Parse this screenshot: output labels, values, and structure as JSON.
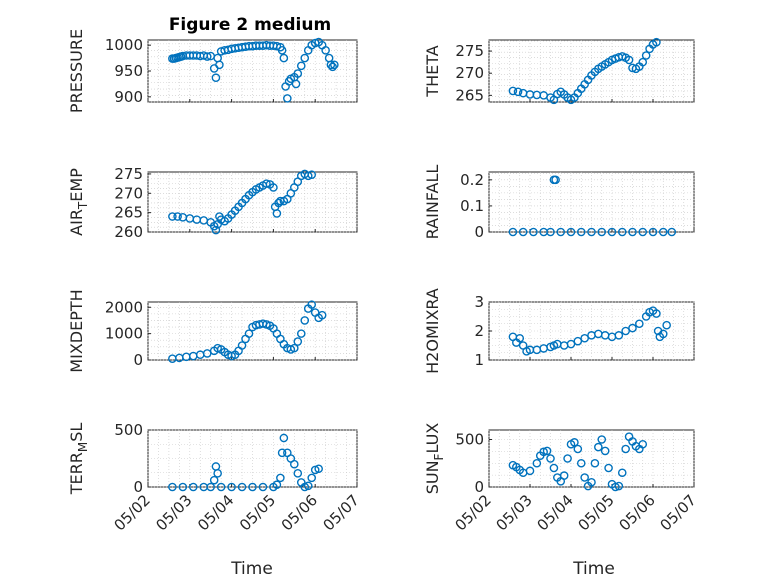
{
  "figure": {
    "title": "Figure 2 medium",
    "marker_color": "#0072BD",
    "xlabel": "Time"
  },
  "chart_data": [
    {
      "type": "scatter",
      "ylabel": "PRESSURE",
      "x_domain": [
        "05/02",
        "05/07"
      ],
      "ylim": [
        890,
        1010
      ],
      "yticks": [
        900,
        950,
        1000
      ],
      "grid": true,
      "points": [
        [
          "05/02 14:00",
          974
        ],
        [
          "05/02 15:00",
          974
        ],
        [
          "05/02 16:00",
          975
        ],
        [
          "05/02 17:00",
          976
        ],
        [
          "05/02 18:00",
          977
        ],
        [
          "05/02 19:00",
          978
        ],
        [
          "05/02 20:00",
          979
        ],
        [
          "05/02 22:00",
          980
        ],
        [
          "05/03 00:00",
          980
        ],
        [
          "05/03 02:00",
          980
        ],
        [
          "05/03 04:00",
          980
        ],
        [
          "05/03 06:00",
          979
        ],
        [
          "05/03 08:00",
          980
        ],
        [
          "05/03 10:00",
          978
        ],
        [
          "05/03 12:00",
          979
        ],
        [
          "05/03 14:00",
          955
        ],
        [
          "05/03 15:00",
          937
        ],
        [
          "05/03 16:00",
          975
        ],
        [
          "05/03 17:00",
          962
        ],
        [
          "05/03 18:00",
          988
        ],
        [
          "05/03 20:00",
          990
        ],
        [
          "05/03 22:00",
          991
        ],
        [
          "05/04 00:00",
          993
        ],
        [
          "05/04 02:00",
          994
        ],
        [
          "05/04 04:00",
          995
        ],
        [
          "05/04 06:00",
          996
        ],
        [
          "05/04 08:00",
          997
        ],
        [
          "05/04 10:00",
          998
        ],
        [
          "05/04 12:00",
          998
        ],
        [
          "05/04 14:00",
          999
        ],
        [
          "05/04 16:00",
          999
        ],
        [
          "05/04 18:00",
          999
        ],
        [
          "05/04 20:00",
          1000
        ],
        [
          "05/04 22:00",
          999
        ],
        [
          "05/05 00:00",
          999
        ],
        [
          "05/05 02:00",
          998
        ],
        [
          "05/05 04:00",
          996
        ],
        [
          "05/05 05:00",
          990
        ],
        [
          "05/05 06:00",
          975
        ],
        [
          "05/05 07:00",
          920
        ],
        [
          "05/05 08:00",
          897
        ],
        [
          "05/05 09:00",
          930
        ],
        [
          "05/05 10:00",
          935
        ],
        [
          "05/05 12:00",
          938
        ],
        [
          "05/05 13:00",
          925
        ],
        [
          "05/05 14:00",
          945
        ],
        [
          "05/05 16:00",
          960
        ],
        [
          "05/05 18:00",
          975
        ],
        [
          "05/05 20:00",
          990
        ],
        [
          "05/05 22:00",
          1000
        ],
        [
          "05/06 00:00",
          1004
        ],
        [
          "05/06 02:00",
          1006
        ],
        [
          "05/06 04:00",
          1000
        ],
        [
          "05/06 06:00",
          990
        ],
        [
          "05/06 08:00",
          975
        ],
        [
          "05/06 09:00",
          962
        ],
        [
          "05/06 10:00",
          958
        ],
        [
          "05/06 11:00",
          962
        ]
      ]
    },
    {
      "type": "scatter",
      "ylabel": "THETA",
      "x_domain": [
        "05/02",
        "05/07"
      ],
      "ylim": [
        263.5,
        277.5
      ],
      "yticks": [
        265,
        270,
        275
      ],
      "grid": true,
      "points": [
        [
          "05/02 14:00",
          266
        ],
        [
          "05/02 17:00",
          265.8
        ],
        [
          "05/02 20:00",
          265.5
        ],
        [
          "05/03 00:00",
          265.2
        ],
        [
          "05/03 04:00",
          265.1
        ],
        [
          "05/03 08:00",
          265.0
        ],
        [
          "05/03 12:00",
          264.5
        ],
        [
          "05/03 14:00",
          264.0
        ],
        [
          "05/03 16:00",
          265.3
        ],
        [
          "05/03 18:00",
          265.8
        ],
        [
          "05/03 20:00",
          265.2
        ],
        [
          "05/03 22:00",
          264.5
        ],
        [
          "05/04 00:00",
          264.0
        ],
        [
          "05/04 02:00",
          264.5
        ],
        [
          "05/04 04:00",
          265.5
        ],
        [
          "05/04 06:00",
          266.5
        ],
        [
          "05/04 08:00",
          267.5
        ],
        [
          "05/04 10:00",
          268.5
        ],
        [
          "05/04 12:00",
          269.5
        ],
        [
          "05/04 14:00",
          270.3
        ],
        [
          "05/04 16:00",
          271.0
        ],
        [
          "05/04 18:00",
          271.5
        ],
        [
          "05/04 20:00",
          272.0
        ],
        [
          "05/04 22:00",
          272.5
        ],
        [
          "05/05 00:00",
          273.0
        ],
        [
          "05/05 02:00",
          273.3
        ],
        [
          "05/05 04:00",
          273.6
        ],
        [
          "05/05 06:00",
          273.8
        ],
        [
          "05/05 08:00",
          273.5
        ],
        [
          "05/05 10:00",
          273.0
        ],
        [
          "05/05 12:00",
          271.2
        ],
        [
          "05/05 14:00",
          271.0
        ],
        [
          "05/05 16:00",
          271.5
        ],
        [
          "05/05 18:00",
          272.5
        ],
        [
          "05/05 20:00",
          274.0
        ],
        [
          "05/05 22:00",
          275.5
        ],
        [
          "05/06 00:00",
          276.5
        ],
        [
          "05/06 02:00",
          277.0
        ]
      ]
    },
    {
      "type": "scatter",
      "ylabel": "AIR_TEMP",
      "x_domain": [
        "05/02",
        "05/07"
      ],
      "ylim": [
        260,
        275.5
      ],
      "yticks": [
        260,
        265,
        270,
        275
      ],
      "grid": true,
      "points": [
        [
          "05/02 14:00",
          264
        ],
        [
          "05/02 17:00",
          264
        ],
        [
          "05/02 20:00",
          263.8
        ],
        [
          "05/03 00:00",
          263.5
        ],
        [
          "05/03 04:00",
          263.2
        ],
        [
          "05/03 08:00",
          263.0
        ],
        [
          "05/03 12:00",
          262.5
        ],
        [
          "05/03 14:00",
          261.5
        ],
        [
          "05/03 15:00",
          260.5
        ],
        [
          "05/03 16:00",
          262.0
        ],
        [
          "05/03 17:00",
          264.0
        ],
        [
          "05/03 18:00",
          263.2
        ],
        [
          "05/03 20:00",
          262.8
        ],
        [
          "05/03 22:00",
          263.5
        ],
        [
          "05/04 00:00",
          264.5
        ],
        [
          "05/04 02:00",
          265.5
        ],
        [
          "05/04 04:00",
          266.5
        ],
        [
          "05/04 06:00",
          267.5
        ],
        [
          "05/04 08:00",
          268.5
        ],
        [
          "05/04 10:00",
          269.5
        ],
        [
          "05/04 12:00",
          270.3
        ],
        [
          "05/04 14:00",
          271.0
        ],
        [
          "05/04 16:00",
          271.5
        ],
        [
          "05/04 18:00",
          272.0
        ],
        [
          "05/04 20:00",
          272.5
        ],
        [
          "05/04 22:00",
          272.3
        ],
        [
          "05/05 00:00",
          271.5
        ],
        [
          "05/05 01:00",
          266.5
        ],
        [
          "05/05 02:00",
          264.8
        ],
        [
          "05/05 03:00",
          267.5
        ],
        [
          "05/05 04:00",
          268.0
        ],
        [
          "05/05 06:00",
          268.0
        ],
        [
          "05/05 08:00",
          268.5
        ],
        [
          "05/05 10:00",
          270.0
        ],
        [
          "05/05 12:00",
          271.5
        ],
        [
          "05/05 14:00",
          273.0
        ],
        [
          "05/05 16:00",
          274.5
        ],
        [
          "05/05 18:00",
          275.0
        ],
        [
          "05/05 20:00",
          274.5
        ],
        [
          "05/05 22:00",
          274.8
        ]
      ]
    },
    {
      "type": "scatter",
      "ylabel": "RAINFALL",
      "x_domain": [
        "05/02",
        "05/07"
      ],
      "ylim": [
        0,
        0.23
      ],
      "yticks": [
        0,
        0.1,
        0.2
      ],
      "grid": true,
      "points": [
        [
          "05/02 14:00",
          0
        ],
        [
          "05/02 20:00",
          0
        ],
        [
          "05/03 02:00",
          0
        ],
        [
          "05/03 08:00",
          0
        ],
        [
          "05/03 12:00",
          0
        ],
        [
          "05/03 14:00",
          0.2
        ],
        [
          "05/03 15:00",
          0.2
        ],
        [
          "05/03 18:00",
          0
        ],
        [
          "05/04 00:00",
          0
        ],
        [
          "05/04 06:00",
          0
        ],
        [
          "05/04 12:00",
          0
        ],
        [
          "05/04 18:00",
          0
        ],
        [
          "05/05 00:00",
          0
        ],
        [
          "05/05 06:00",
          0
        ],
        [
          "05/05 12:00",
          0
        ],
        [
          "05/05 18:00",
          0
        ],
        [
          "05/06 00:00",
          0
        ],
        [
          "05/06 06:00",
          0
        ],
        [
          "05/06 11:00",
          0
        ]
      ]
    },
    {
      "type": "scatter",
      "ylabel": "MIXDEPTH",
      "x_domain": [
        "05/02",
        "05/07"
      ],
      "ylim": [
        0,
        2200
      ],
      "yticks": [
        0,
        1000,
        2000
      ],
      "grid": true,
      "points": [
        [
          "05/02 14:00",
          50
        ],
        [
          "05/02 18:00",
          80
        ],
        [
          "05/02 22:00",
          120
        ],
        [
          "05/03 02:00",
          150
        ],
        [
          "05/03 06:00",
          200
        ],
        [
          "05/03 10:00",
          250
        ],
        [
          "05/03 14:00",
          350
        ],
        [
          "05/03 16:00",
          450
        ],
        [
          "05/03 18:00",
          400
        ],
        [
          "05/03 20:00",
          300
        ],
        [
          "05/03 22:00",
          200
        ],
        [
          "05/04 00:00",
          150
        ],
        [
          "05/04 02:00",
          200
        ],
        [
          "05/04 04:00",
          350
        ],
        [
          "05/04 06:00",
          550
        ],
        [
          "05/04 08:00",
          800
        ],
        [
          "05/04 10:00",
          1000
        ],
        [
          "05/04 12:00",
          1250
        ],
        [
          "05/04 14:00",
          1320
        ],
        [
          "05/04 16:00",
          1350
        ],
        [
          "05/04 18:00",
          1380
        ],
        [
          "05/04 20:00",
          1350
        ],
        [
          "05/04 22:00",
          1300
        ],
        [
          "05/05 00:00",
          1200
        ],
        [
          "05/05 02:00",
          1000
        ],
        [
          "05/05 04:00",
          800
        ],
        [
          "05/05 06:00",
          600
        ],
        [
          "05/05 08:00",
          450
        ],
        [
          "05/05 10:00",
          400
        ],
        [
          "05/05 12:00",
          450
        ],
        [
          "05/05 14:00",
          700
        ],
        [
          "05/05 16:00",
          1000
        ],
        [
          "05/05 18:00",
          1500
        ],
        [
          "05/05 20:00",
          1950
        ],
        [
          "05/05 22:00",
          2100
        ],
        [
          "05/06 00:00",
          1800
        ],
        [
          "05/06 02:00",
          1600
        ],
        [
          "05/06 04:00",
          1700
        ]
      ]
    },
    {
      "type": "scatter",
      "ylabel": "H2OMIXRA",
      "x_domain": [
        "05/02",
        "05/07"
      ],
      "ylim": [
        1,
        3
      ],
      "yticks": [
        1,
        2,
        3
      ],
      "grid": true,
      "points": [
        [
          "05/02 14:00",
          1.8
        ],
        [
          "05/02 16:00",
          1.6
        ],
        [
          "05/02 18:00",
          1.75
        ],
        [
          "05/02 20:00",
          1.5
        ],
        [
          "05/02 22:00",
          1.3
        ],
        [
          "05/03 00:00",
          1.35
        ],
        [
          "05/03 04:00",
          1.35
        ],
        [
          "05/03 08:00",
          1.4
        ],
        [
          "05/03 12:00",
          1.45
        ],
        [
          "05/03 14:00",
          1.5
        ],
        [
          "05/03 16:00",
          1.55
        ],
        [
          "05/03 20:00",
          1.5
        ],
        [
          "05/04 00:00",
          1.55
        ],
        [
          "05/04 04:00",
          1.65
        ],
        [
          "05/04 08:00",
          1.75
        ],
        [
          "05/04 12:00",
          1.85
        ],
        [
          "05/04 16:00",
          1.9
        ],
        [
          "05/04 20:00",
          1.85
        ],
        [
          "05/05 00:00",
          1.8
        ],
        [
          "05/05 04:00",
          1.85
        ],
        [
          "05/05 08:00",
          2.0
        ],
        [
          "05/05 12:00",
          2.1
        ],
        [
          "05/05 16:00",
          2.25
        ],
        [
          "05/05 20:00",
          2.5
        ],
        [
          "05/05 22:00",
          2.65
        ],
        [
          "05/06 00:00",
          2.7
        ],
        [
          "05/06 02:00",
          2.6
        ],
        [
          "05/06 03:00",
          2.0
        ],
        [
          "05/06 04:00",
          1.8
        ],
        [
          "05/06 06:00",
          1.9
        ],
        [
          "05/06 08:00",
          2.2
        ]
      ]
    },
    {
      "type": "scatter",
      "ylabel": "TERR_MSL",
      "x_domain": [
        "05/02",
        "05/07"
      ],
      "ylim": [
        0,
        500
      ],
      "yticks": [
        0,
        500
      ],
      "grid": true,
      "points": [
        [
          "05/02 14:00",
          0
        ],
        [
          "05/02 20:00",
          0
        ],
        [
          "05/03 02:00",
          0
        ],
        [
          "05/03 08:00",
          0
        ],
        [
          "05/03 12:00",
          0
        ],
        [
          "05/03 14:00",
          60
        ],
        [
          "05/03 15:00",
          180
        ],
        [
          "05/03 16:00",
          120
        ],
        [
          "05/03 18:00",
          0
        ],
        [
          "05/04 00:00",
          0
        ],
        [
          "05/04 06:00",
          0
        ],
        [
          "05/04 12:00",
          0
        ],
        [
          "05/04 18:00",
          0
        ],
        [
          "05/05 00:00",
          0
        ],
        [
          "05/05 02:00",
          20
        ],
        [
          "05/05 04:00",
          80
        ],
        [
          "05/05 05:00",
          300
        ],
        [
          "05/05 06:00",
          430
        ],
        [
          "05/05 08:00",
          300
        ],
        [
          "05/05 10:00",
          250
        ],
        [
          "05/05 12:00",
          200
        ],
        [
          "05/05 14:00",
          120
        ],
        [
          "05/05 16:00",
          40
        ],
        [
          "05/05 18:00",
          0
        ],
        [
          "05/05 20:00",
          10
        ],
        [
          "05/05 22:00",
          80
        ],
        [
          "05/06 00:00",
          150
        ],
        [
          "05/06 02:00",
          160
        ]
      ]
    },
    {
      "type": "scatter",
      "ylabel": "SUN_FLUX",
      "x_domain": [
        "05/02",
        "05/07"
      ],
      "ylim": [
        0,
        600
      ],
      "yticks": [
        0,
        500
      ],
      "grid": true,
      "points": [
        [
          "05/02 14:00",
          230
        ],
        [
          "05/02 16:00",
          210
        ],
        [
          "05/02 18:00",
          180
        ],
        [
          "05/02 20:00",
          150
        ],
        [
          "05/03 00:00",
          170
        ],
        [
          "05/03 04:00",
          250
        ],
        [
          "05/03 06:00",
          330
        ],
        [
          "05/03 08:00",
          370
        ],
        [
          "05/03 10:00",
          380
        ],
        [
          "05/03 12:00",
          300
        ],
        [
          "05/03 14:00",
          200
        ],
        [
          "05/03 16:00",
          100
        ],
        [
          "05/03 18:00",
          60
        ],
        [
          "05/03 20:00",
          120
        ],
        [
          "05/03 22:00",
          300
        ],
        [
          "05/04 00:00",
          450
        ],
        [
          "05/04 02:00",
          470
        ],
        [
          "05/04 04:00",
          400
        ],
        [
          "05/04 06:00",
          250
        ],
        [
          "05/04 08:00",
          100
        ],
        [
          "05/04 10:00",
          10
        ],
        [
          "05/04 12:00",
          50
        ],
        [
          "05/04 14:00",
          250
        ],
        [
          "05/04 16:00",
          420
        ],
        [
          "05/04 18:00",
          500
        ],
        [
          "05/04 20:00",
          380
        ],
        [
          "05/04 22:00",
          200
        ],
        [
          "05/05 00:00",
          30
        ],
        [
          "05/05 02:00",
          0
        ],
        [
          "05/05 04:00",
          10
        ],
        [
          "05/05 06:00",
          150
        ],
        [
          "05/05 08:00",
          400
        ],
        [
          "05/05 10:00",
          530
        ],
        [
          "05/05 12:00",
          480
        ],
        [
          "05/05 14:00",
          430
        ],
        [
          "05/05 16:00",
          400
        ],
        [
          "05/05 18:00",
          450
        ]
      ]
    }
  ]
}
